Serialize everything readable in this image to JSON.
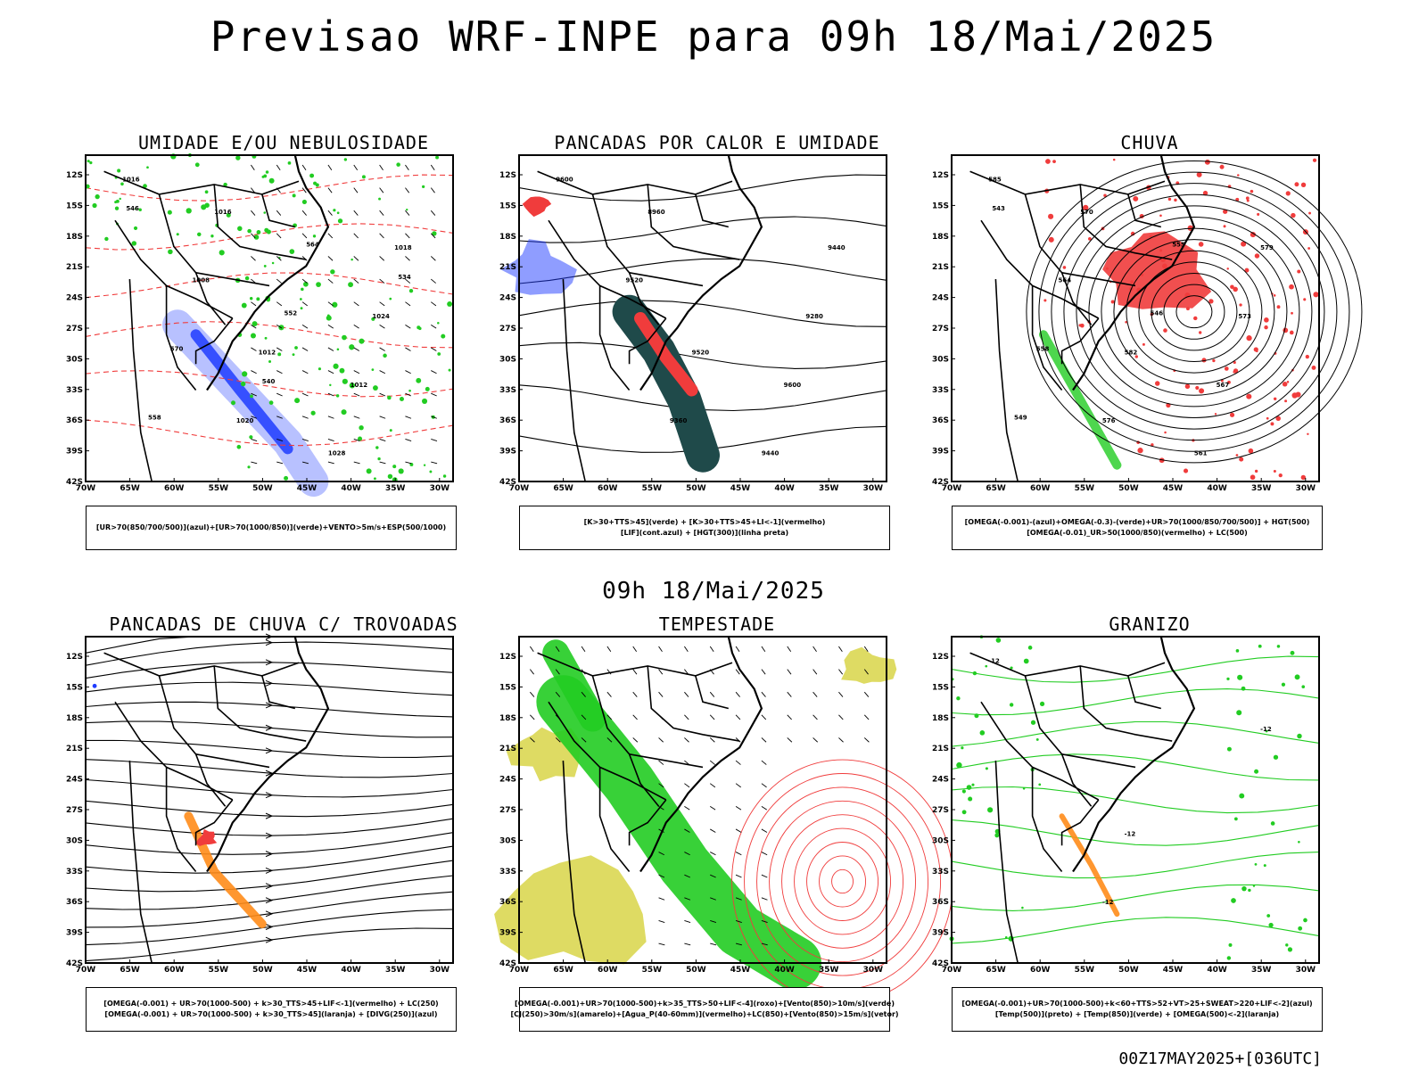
{
  "main_title": "Previsao WRF-INPE  para 09h 18/Mai/2025",
  "mid_title": "09h 18/Mai/2025",
  "footer": "00Z17MAY2025+[036UTC]",
  "axes": {
    "lat_labels": [
      "12S",
      "15S",
      "18S",
      "21S",
      "24S",
      "27S",
      "30S",
      "33S",
      "36S",
      "39S",
      "42S"
    ],
    "lon_labels": [
      "70W",
      "65W",
      "60W",
      "55W",
      "50W",
      "45W",
      "40W",
      "35W",
      "30W"
    ]
  },
  "panels": [
    {
      "title": "UMIDADE E/OU NEBULOSIDADE",
      "legend": [
        "[UR>70(850/700/500)](azul)+[UR>70(1000/850)](verde)+VENTO>5m/s+ESP(500/1000)"
      ],
      "contour_labels": [
        "1016",
        "1012",
        "1018",
        "1020",
        "1024",
        "1016",
        "1012",
        "1008",
        "1028",
        "570",
        "564",
        "558",
        "552",
        "546",
        "540",
        "534"
      ]
    },
    {
      "title": "PANCADAS POR CALOR E UMIDADE",
      "legend": [
        "[K>30+TTS>45](verde) + [K>30+TTS>45+LI<-1](vermelho)",
        "[LIF](cont.azul) + [HGT(300)](linha preta)"
      ],
      "contour_labels": [
        "9600",
        "9520",
        "9440",
        "9360",
        "9280",
        "8960",
        "9600",
        "9520",
        "9440"
      ]
    },
    {
      "title": "CHUVA",
      "legend": [
        "[OMEGA(-0.001)-(azul)+OMEGA(-0.3)-(verde)+UR>70(1000/850/700/500)] + HGT(500)",
        "[OMEGA(-0.01)_UR>50(1000/850)(vermelho) + LC(500)"
      ],
      "contour_labels": [
        "585",
        "582",
        "579",
        "576",
        "573",
        "570",
        "567",
        "564",
        "561",
        "558",
        "555",
        "549",
        "546",
        "543"
      ]
    },
    {
      "title": "PANCADAS DE CHUVA C/ TROVOADAS",
      "legend": [
        "[OMEGA(-0.001) + UR>70(1000-500) + k>30_TTS>45+LIF<-1](vermelho) + LC(250)",
        "[OMEGA(-0.001) + UR>70(1000-500) + k>30_TTS>45](laranja) + [DIVG(250)](azul)"
      ],
      "contour_labels": []
    },
    {
      "title": "TEMPESTADE",
      "legend": [
        "[OMEGA(-0.001)+UR>70(1000-500)+k>35_TTS>50+LIF<-4](roxo)+[Vento(850)>10m/s](verde)",
        "[CJ(250)>30m/s](amarelo)+[Agua_P(40-60mm)](vermelho)+LC(850)+[Vento(850)>15m/s](vetor)"
      ],
      "contour_labels": []
    },
    {
      "title": "GRANIZO",
      "legend": [
        "[OMEGA(-0.001)+UR>70(1000-500)+k<60+TTS>52+VT>25+SWEAT>220+LIF<-2](azul)",
        "[Temp(500)](preto) + [Temp(850)](verde) + [OMEGA(500)<-2](laranja)"
      ],
      "contour_labels": [
        "-12",
        "-12",
        "-12",
        "-12"
      ]
    }
  ],
  "colors": {
    "red": "#f03c3c",
    "green": "#22cc22",
    "blue": "#1f3cff",
    "lightblue": "#9aa6ff",
    "teal": "#1f4a4a",
    "yellow": "#d6d23c",
    "orange": "#ff8c1a",
    "black": "#000000"
  }
}
